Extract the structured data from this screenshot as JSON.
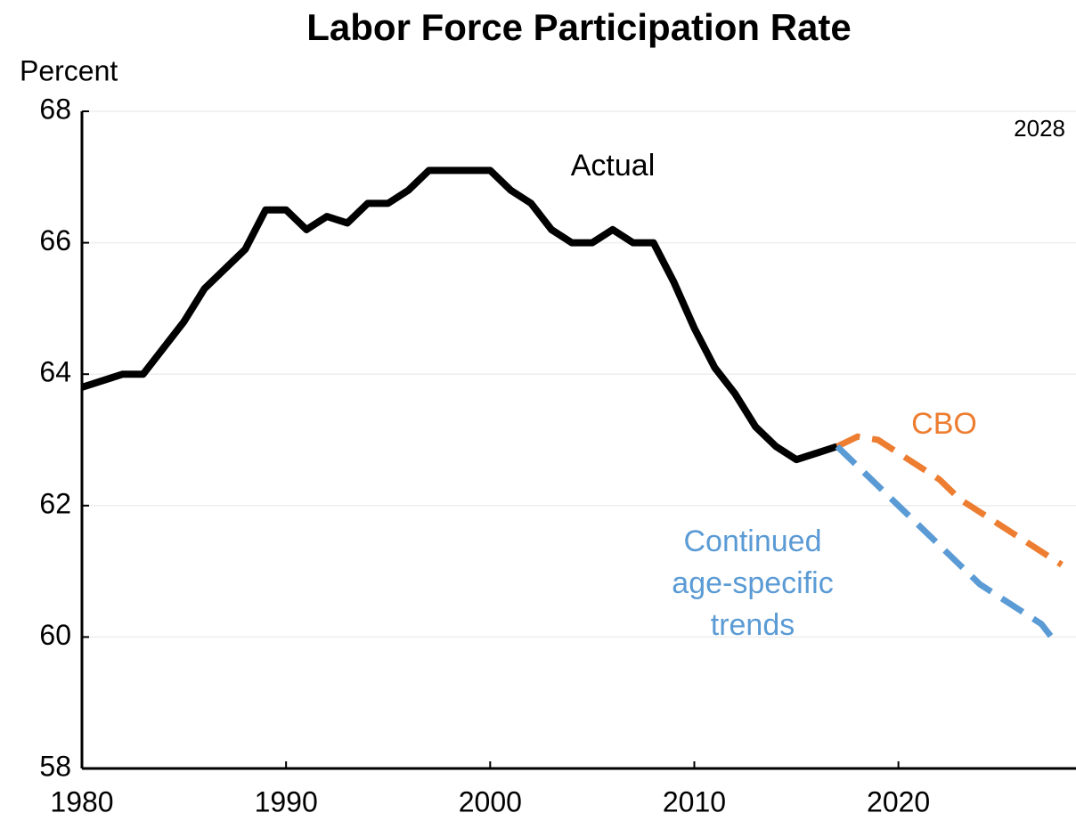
{
  "chart_data": {
    "type": "line",
    "title": "Labor Force Participation Rate",
    "y_label": "Percent",
    "xlim": [
      1980,
      2028.7
    ],
    "xticks": [
      1980,
      1990,
      2000,
      2010,
      2020
    ],
    "ylim": [
      58,
      68
    ],
    "yticks": [
      58,
      60,
      62,
      64,
      66,
      68
    ],
    "grid": true,
    "series": [
      {
        "name": "Actual",
        "color": "#000000",
        "dashed": false,
        "x": [
          1980,
          1981,
          1982,
          1983,
          1984,
          1985,
          1986,
          1987,
          1988,
          1989,
          1990,
          1991,
          1992,
          1993,
          1994,
          1995,
          1996,
          1997,
          1998,
          1999,
          2000,
          2001,
          2002,
          2003,
          2004,
          2005,
          2006,
          2007,
          2008,
          2009,
          2010,
          2011,
          2012,
          2013,
          2014,
          2015,
          2016,
          2017
        ],
        "values": [
          63.8,
          63.9,
          64.0,
          64.0,
          64.4,
          64.8,
          65.3,
          65.6,
          65.9,
          66.5,
          66.5,
          66.2,
          66.4,
          66.3,
          66.6,
          66.6,
          66.8,
          67.1,
          67.1,
          67.1,
          67.1,
          66.8,
          66.6,
          66.2,
          66.0,
          66.0,
          66.2,
          66.0,
          66.0,
          65.4,
          64.7,
          64.1,
          63.7,
          63.2,
          62.9,
          62.7,
          62.8,
          62.9
        ]
      },
      {
        "name": "CBO",
        "color": "#ed7d31",
        "dashed": true,
        "x": [
          2017,
          2018,
          2019,
          2020,
          2021,
          2022,
          2023,
          2024,
          2025,
          2026,
          2027,
          2028
        ],
        "values": [
          62.9,
          63.05,
          63.0,
          62.8,
          62.6,
          62.4,
          62.1,
          61.9,
          61.7,
          61.5,
          61.3,
          61.1
        ]
      },
      {
        "name": "Continued age-specific trends",
        "color": "#5b9bd5",
        "dashed": true,
        "x": [
          2017,
          2018,
          2019,
          2020,
          2021,
          2022,
          2023,
          2024,
          2025,
          2026,
          2027,
          2027.5
        ],
        "values": [
          62.9,
          62.6,
          62.3,
          62.0,
          61.7,
          61.4,
          61.1,
          60.8,
          60.6,
          60.4,
          60.2,
          60.0
        ]
      }
    ],
    "annotations": [
      {
        "lines": [
          "Actual"
        ],
        "color": "#000000"
      },
      {
        "lines": [
          "CBO"
        ],
        "color": "#ed7d31"
      },
      {
        "lines": [
          "Continued",
          "age-specific",
          "trends"
        ],
        "color": "#5b9bd5"
      },
      {
        "lines": [
          "2028"
        ],
        "color": "#000000"
      }
    ]
  }
}
